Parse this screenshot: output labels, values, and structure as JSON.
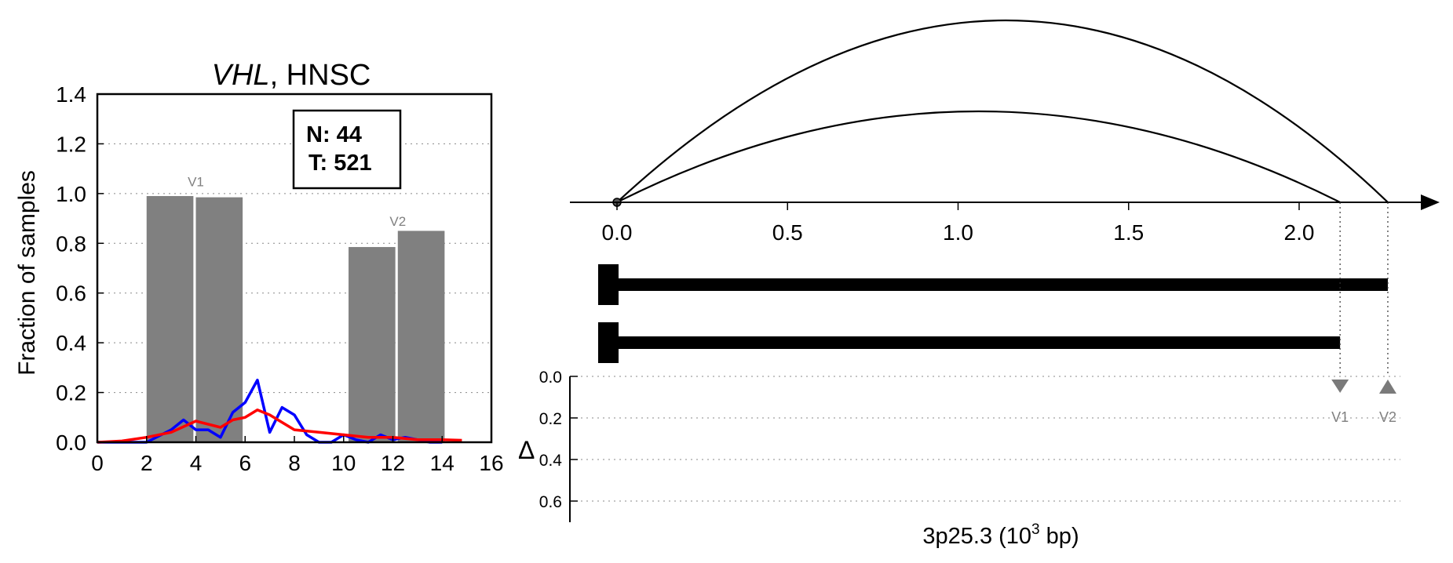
{
  "chart_data": [
    {
      "type": "bar",
      "title": {
        "gene": "VHL",
        "rest": ", HNSC"
      },
      "ylabel": "Fraction of samples",
      "xlabel": "",
      "xlim": [
        0,
        16
      ],
      "ylim": [
        0,
        1.4
      ],
      "x_ticks": [
        0,
        2,
        4,
        6,
        8,
        10,
        12,
        14,
        16
      ],
      "y_ticks": [
        0.0,
        0.2,
        0.4,
        0.6,
        0.8,
        1.0,
        1.2,
        1.4
      ],
      "grid": "horizontal dotted",
      "counts_box": {
        "n_label": "N: 44",
        "t_label": "T: 521"
      },
      "bars": [
        {
          "x0": 2.0,
          "x1": 3.9,
          "value": 0.99
        },
        {
          "x0": 4.0,
          "x1": 5.9,
          "value": 0.985
        },
        {
          "x0": 10.2,
          "x1": 12.1,
          "value": 0.785
        },
        {
          "x0": 12.2,
          "x1": 14.1,
          "value": 0.85
        }
      ],
      "bar_groups": [
        {
          "label": "V1",
          "x": 4.0,
          "y": 1.03
        },
        {
          "label": "V2",
          "x": 12.2,
          "y": 0.87
        }
      ],
      "series": [
        {
          "color": "#0000ff",
          "x": [
            0,
            1,
            2,
            3,
            3.5,
            4,
            4.5,
            5,
            5.5,
            6,
            6.5,
            7,
            7.5,
            8,
            8.5,
            9,
            9.5,
            10,
            10.5,
            11,
            11.5,
            12,
            12.5,
            13,
            13.5,
            14
          ],
          "y": [
            0,
            0,
            0,
            0.05,
            0.09,
            0.05,
            0.05,
            0.02,
            0.12,
            0.16,
            0.25,
            0.04,
            0.14,
            0.11,
            0.03,
            0,
            0,
            0.03,
            0.01,
            0,
            0.03,
            0.01,
            0.02,
            0.01,
            0,
            0
          ]
        },
        {
          "color": "#ff0000",
          "x": [
            0,
            1,
            2,
            3,
            4,
            5,
            5.5,
            6,
            6.5,
            7,
            7.5,
            8,
            9,
            10,
            11,
            12,
            13,
            14,
            14.8
          ],
          "y": [
            0,
            0.005,
            0.02,
            0.04,
            0.085,
            0.06,
            0.09,
            0.1,
            0.13,
            0.11,
            0.08,
            0.05,
            0.04,
            0.03,
            0.02,
            0.02,
            0.01,
            0.01,
            0.008
          ]
        }
      ]
    },
    {
      "type": "line",
      "xlabel": {
        "prefix": "3p25.3 (10",
        "exp": "3",
        "suffix": " bp)"
      },
      "x_ticks": [
        0.0,
        0.5,
        1.0,
        1.5,
        2.0
      ],
      "x_tick_labels": [
        "0.0",
        "0.5",
        "1.0",
        "1.5",
        "2.0"
      ],
      "xlim": [
        -0.13,
        2.4
      ],
      "arcs": [
        {
          "start": 0,
          "end": 2.26,
          "apex_x": 1.14,
          "height": 1.0
        },
        {
          "start": 0,
          "end": 2.12,
          "apex_x": 1.06,
          "height": 0.5
        }
      ],
      "transcripts": [
        {
          "start": 0,
          "end": 2.26
        },
        {
          "start": 0,
          "end": 2.12
        }
      ],
      "delta_axis": {
        "label": "Δ",
        "ticks": [
          0.0,
          0.2,
          0.4,
          0.6
        ],
        "tick_labels": [
          "0.0",
          "0.2",
          "0.4",
          "0.6"
        ],
        "grid": "horizontal dotted"
      },
      "markers": [
        {
          "label": "V1",
          "x": 2.12,
          "shape": "down-triangle"
        },
        {
          "label": "V2",
          "x": 2.26,
          "shape": "up-triangle"
        }
      ]
    }
  ],
  "colors": {
    "bar": "#808080",
    "marker": "#7a7a7a",
    "tumor_line": "#ff0000",
    "normal_line": "#0000ff",
    "ink": "#000000"
  }
}
